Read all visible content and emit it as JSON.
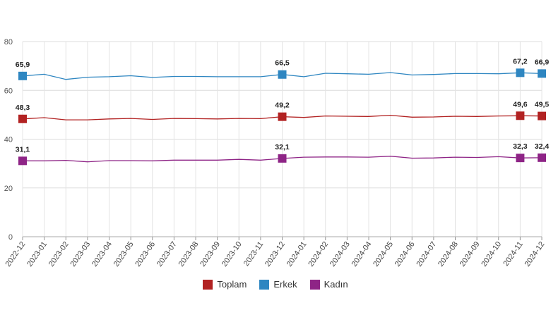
{
  "chart_data": {
    "type": "line",
    "x": [
      "2022-12",
      "2023-01",
      "2023-02",
      "2023-03",
      "2023-04",
      "2023-05",
      "2023-06",
      "2023-07",
      "2023-08",
      "2023-09",
      "2023-10",
      "2023-11",
      "2023-12",
      "2024-01",
      "2024-02",
      "2024-03",
      "2024-04",
      "2024-05",
      "2024-06",
      "2024-07",
      "2024-08",
      "2024-09",
      "2024-10",
      "2024-11",
      "2024-12"
    ],
    "ylim": [
      0,
      80
    ],
    "yticks": [
      "0",
      "20",
      "40",
      "60",
      "80"
    ],
    "grid": true,
    "legend_position": "bottom",
    "series": [
      {
        "name": "Toplam",
        "color": "#b22222",
        "values": [
          48.3,
          48.8,
          47.9,
          47.9,
          48.3,
          48.5,
          48.1,
          48.5,
          48.4,
          48.3,
          48.5,
          48.4,
          49.2,
          48.9,
          49.5,
          49.4,
          49.3,
          49.8,
          49.0,
          49.1,
          49.4,
          49.3,
          49.5,
          49.6,
          49.5
        ],
        "labels": [
          {
            "index": 0,
            "text": "48,3"
          },
          {
            "index": 12,
            "text": "49,2"
          },
          {
            "index": 23,
            "text": "49,6"
          },
          {
            "index": 24,
            "text": "49,5"
          }
        ]
      },
      {
        "name": "Erkek",
        "color": "#2e86c1",
        "values": [
          65.9,
          66.6,
          64.5,
          65.4,
          65.6,
          66.0,
          65.3,
          65.7,
          65.7,
          65.6,
          65.6,
          65.6,
          66.5,
          65.6,
          67.0,
          66.8,
          66.6,
          67.3,
          66.3,
          66.5,
          66.9,
          66.9,
          66.8,
          67.2,
          66.9
        ],
        "labels": [
          {
            "index": 0,
            "text": "65,9"
          },
          {
            "index": 12,
            "text": "66,5"
          },
          {
            "index": 23,
            "text": "67,2"
          },
          {
            "index": 24,
            "text": "66,9"
          }
        ]
      },
      {
        "name": "Kadın",
        "color": "#8e2486",
        "values": [
          31.1,
          31.1,
          31.3,
          30.7,
          31.2,
          31.2,
          31.1,
          31.4,
          31.4,
          31.4,
          31.7,
          31.4,
          32.1,
          32.6,
          32.7,
          32.7,
          32.6,
          33.0,
          32.2,
          32.3,
          32.6,
          32.5,
          32.8,
          32.3,
          32.4
        ],
        "labels": [
          {
            "index": 0,
            "text": "31,1"
          },
          {
            "index": 12,
            "text": "32,1"
          },
          {
            "index": 23,
            "text": "32,3"
          },
          {
            "index": 24,
            "text": "32,4"
          }
        ]
      }
    ]
  }
}
